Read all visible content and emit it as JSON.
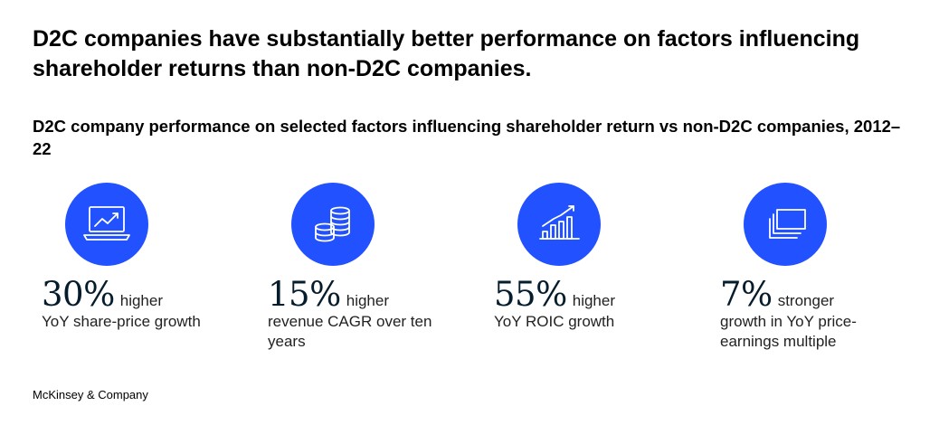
{
  "headline": "D2C companies have substantially better performance on factors influencing shareholder returns than non-D2C companies.",
  "subhead": "D2C company performance on selected factors influencing shareholder return vs non-D2C companies, 2012–22",
  "accent_color": "#2251ff",
  "stats": [
    {
      "icon": "laptop-chart-icon",
      "figure": "30%",
      "qualifier": "higher",
      "description": "YoY share-price growth"
    },
    {
      "icon": "coin-stack-icon",
      "figure": "15%",
      "qualifier": "higher",
      "description": "revenue CAGR over ten years"
    },
    {
      "icon": "bar-chart-growth-icon",
      "figure": "55%",
      "qualifier": "higher",
      "description": "YoY ROIC growth"
    },
    {
      "icon": "stacked-cards-icon",
      "figure": "7%",
      "qualifier": "stronger",
      "description": "growth in YoY price-earnings multiple"
    }
  ],
  "footer": "McKinsey & Company"
}
